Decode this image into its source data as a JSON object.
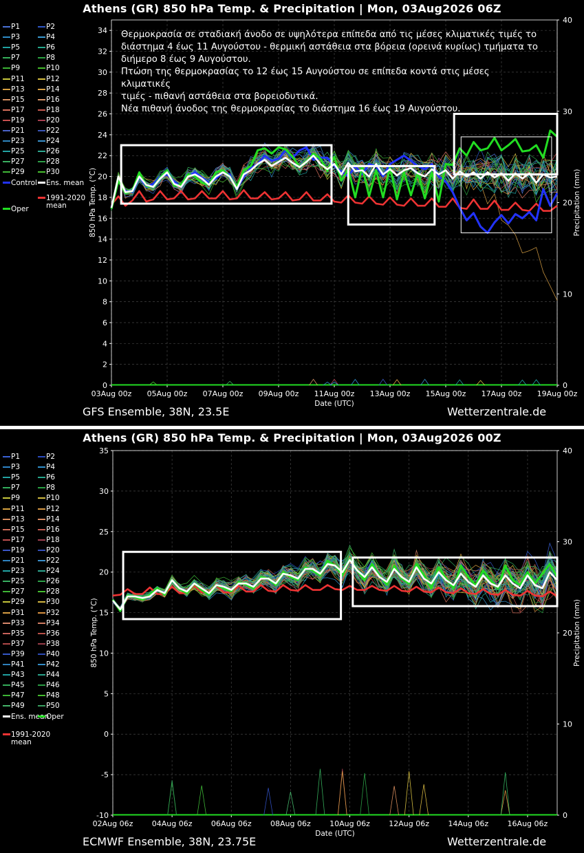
{
  "charts": [
    {
      "id": "gfs",
      "title": "Athens  (GR)  850 hPa Temp. & Precipitation | Mon, 03Aug2026 06Z",
      "footer_left": "GFS Ensemble, 38N, 23.5E",
      "footer_right": "Wetterzentrale.de",
      "annotation": [
        "Θερμοκρασία σε σταδιακή άνοδο σε υψηλότερα επίπεδα από τις μέσες κλιματικές τιμές το",
        "διάστημα 4 έως 11 Αυγούστου - θερμική αστάθεια στα βόρεια (ορεινά κυρίως) τμήματα το",
        "διήμερο 8 έως 9 Αυγούστου.",
        "Πτώση της θερμοκρασίας το 12 έως 15 Αυγούστου σε επίπεδα κοντά στις μέσες κλιματικές",
        "τιμές - πιθανή αστάθεια στα βορειοδυτικά.",
        "Νέα πιθανή άνοδος της θερμοκρασίας το διάστημα 16 έως 19 Αυγούστου."
      ],
      "legend": {
        "members": [
          "P1",
          "P2",
          "P3",
          "P4",
          "P5",
          "P6",
          "P7",
          "P8",
          "P9",
          "P10",
          "P11",
          "P12",
          "P13",
          "P14",
          "P15",
          "P16",
          "P17",
          "P18",
          "P19",
          "P20",
          "P21",
          "P22",
          "P23",
          "P24",
          "P25",
          "P26",
          "P27",
          "P28",
          "P29",
          "P30"
        ],
        "control": "Control",
        "ens_mean": "Ens. mean",
        "climate_line1": "1991-2020",
        "climate_line2": "mean",
        "oper": "Oper"
      },
      "member_colors": [
        "#4a72d8",
        "#2e58c8",
        "#2e8cc8",
        "#3a9ad2",
        "#1fa2a2",
        "#26a88c",
        "#35b05a",
        "#2aa040",
        "#3cb434",
        "#44bc2c",
        "#c8c83c",
        "#d8c040",
        "#d8a040",
        "#d8a044",
        "#d89060",
        "#d89468",
        "#d8705c",
        "#c85a50",
        "#c85050",
        "#a84050",
        "#4a62c8",
        "#3a56b8",
        "#2e86c0",
        "#3a92cc",
        "#22a4a4",
        "#2ea890",
        "#3ab060",
        "#2ea048",
        "#40b838",
        "#48c030"
      ],
      "chart_data": {
        "type": "line",
        "xlabel": "Date (UTC)",
        "ylabel": "850 hPa Temp. (°C)",
        "y2label": "Precipitation (mm)",
        "ylim": [
          0,
          35
        ],
        "y2lim": [
          0,
          40
        ],
        "yticks": [
          0,
          2,
          4,
          6,
          8,
          10,
          12,
          14,
          16,
          18,
          20,
          22,
          24,
          26,
          28,
          30,
          32,
          34
        ],
        "y2ticks": [
          0,
          10,
          20,
          30,
          40
        ],
        "x_start": "03Aug 00z",
        "x_step_hours": 6,
        "x_points": 65,
        "xticks": [
          "03Aug 00z",
          "05Aug 00z",
          "07Aug 00z",
          "09Aug 00z",
          "11Aug 00z",
          "13Aug 00z",
          "15Aug 00z",
          "17Aug 00z",
          "19Aug 00z"
        ],
        "xtick_index": [
          0,
          8,
          16,
          24,
          32,
          40,
          48,
          56,
          64
        ],
        "series": [
          {
            "name": "Ens. mean",
            "color": "#ffffff",
            "values": [
              17.0,
              20.0,
              18.5,
              18.6,
              20.0,
              19.2,
              19.0,
              19.8,
              20.4,
              19.3,
              19.0,
              20.0,
              20.2,
              19.8,
              19.2,
              20.0,
              20.4,
              20.0,
              18.8,
              20.2,
              20.6,
              21.2,
              21.6,
              21.0,
              21.4,
              21.8,
              21.3,
              20.9,
              21.4,
              22.0,
              21.2,
              20.7,
              21.2,
              20.2,
              21.3,
              20.5,
              20.6,
              20.0,
              21.2,
              20.2,
              20.7,
              20.1,
              20.6,
              20.8,
              20.3,
              20.0,
              20.7,
              20.2,
              20.6,
              19.8,
              20.5,
              20.0,
              20.4,
              19.8,
              20.4,
              19.9,
              20.3,
              19.6,
              20.3,
              19.8,
              20.3,
              19.4,
              20.2,
              19.9,
              20.0
            ]
          },
          {
            "name": "Control",
            "color": "#2233ff",
            "values": [
              17.0,
              19.6,
              18.6,
              18.5,
              20.0,
              19.0,
              19.3,
              20.0,
              20.2,
              19.5,
              19.0,
              20.0,
              20.4,
              19.9,
              19.4,
              19.8,
              20.4,
              20.2,
              18.8,
              20.0,
              20.8,
              21.2,
              22.0,
              21.5,
              21.7,
              22.5,
              21.8,
              22.5,
              22.8,
              21.6,
              21.8,
              21.8,
              21.0,
              20.5,
              20.0,
              21.0,
              20.2,
              21.2,
              21.0,
              20.0,
              21.2,
              21.6,
              22.0,
              21.5,
              21.0,
              20.7,
              21.2,
              20.0,
              19.5,
              18.5,
              17.0,
              15.8,
              16.5,
              15.2,
              14.6,
              15.6,
              16.3,
              15.5,
              16.4,
              16.0,
              16.6,
              15.8,
              18.8,
              17.2,
              18.4
            ]
          },
          {
            "name": "Oper",
            "color": "#22dd22",
            "values": [
              16.9,
              19.6,
              18.4,
              18.6,
              20.4,
              19.1,
              19.0,
              19.9,
              20.6,
              19.1,
              19.2,
              20.2,
              20.0,
              19.4,
              19.2,
              20.4,
              20.6,
              20.0,
              19.0,
              20.6,
              21.0,
              22.5,
              22.7,
              22.2,
              22.8,
              22.6,
              21.9,
              20.9,
              21.4,
              22.2,
              21.7,
              20.5,
              21.9,
              19.6,
              20.7,
              18.0,
              20.9,
              18.1,
              20.6,
              18.0,
              20.9,
              17.8,
              20.4,
              18.2,
              20.4,
              17.9,
              20.4,
              17.6,
              21.2,
              21.1,
              22.7,
              22.0,
              23.3,
              22.5,
              22.7,
              23.7,
              22.5,
              23.0,
              23.6,
              22.4,
              22.5,
              23.0,
              21.8,
              24.4,
              23.8
            ]
          },
          {
            "name": "1991-2020 mean",
            "color": "#ee3333",
            "values": [
              17.3,
              18.1,
              17.2,
              17.7,
              18.6,
              17.6,
              17.8,
              18.6,
              17.8,
              17.9,
              18.6,
              17.8,
              17.9,
              18.6,
              17.9,
              17.9,
              18.6,
              17.8,
              17.9,
              18.7,
              17.9,
              17.9,
              18.5,
              17.8,
              17.9,
              18.5,
              17.7,
              17.8,
              18.5,
              17.7,
              17.7,
              18.3,
              17.6,
              17.5,
              18.2,
              17.5,
              17.4,
              18.1,
              17.4,
              17.3,
              18.0,
              17.3,
              17.2,
              17.9,
              17.2,
              17.2,
              17.9,
              17.1,
              17.1,
              17.9,
              17.0,
              16.9,
              17.8,
              16.9,
              16.9,
              17.7,
              16.8,
              16.8,
              17.5,
              16.8,
              16.7,
              17.4,
              16.7,
              16.7,
              17.2
            ]
          }
        ],
        "members_spread": {
          "base": "Ens. mean",
          "spread_start": 0.6,
          "spread_end": 3.2
        },
        "precip": {
          "name": "Precipitation",
          "color": "#22dd22",
          "values": [
            0,
            0,
            0,
            0,
            0,
            0,
            0,
            0,
            0,
            0,
            0,
            0,
            0,
            0,
            0,
            0,
            0,
            0,
            0,
            0,
            0,
            0,
            0,
            0,
            0,
            0,
            0,
            0,
            0,
            0,
            0,
            0,
            0,
            0,
            0,
            0,
            0,
            0,
            0,
            0,
            0,
            0,
            0,
            0,
            0,
            0,
            0,
            0,
            0,
            0,
            0,
            0,
            0,
            0,
            0,
            0,
            0,
            0,
            0,
            0,
            0,
            0,
            0,
            0,
            0
          ]
        },
        "highlight_boxes": [
          {
            "x0_index": 1.4,
            "x1_index": 31.6,
            "y0": 17.4,
            "y1": 23.0
          },
          {
            "x0_index": 34.0,
            "x1_index": 46.4,
            "y0": 15.4,
            "y1": 21.0
          },
          {
            "x0_index": 49.2,
            "x1_index": 64.0,
            "y0": 20.2,
            "y1": 26.0
          },
          {
            "x0_index": 50.2,
            "x1_index": 63.2,
            "y0": 14.6,
            "y1": 23.8
          }
        ]
      }
    },
    {
      "id": "ecmwf",
      "title": "Athens  (GR)  850 hPa Temp. & Precipitation | Mon, 03Aug2026 00Z",
      "footer_left": "ECMWF Ensemble, 38N, 23.75E",
      "footer_right": "Wetterzentrale.de",
      "annotation": [],
      "legend": {
        "members": [
          "P1",
          "P2",
          "P3",
          "P4",
          "P5",
          "P6",
          "P7",
          "P8",
          "P9",
          "P10",
          "P11",
          "P12",
          "P13",
          "P14",
          "P15",
          "P16",
          "P17",
          "P18",
          "P19",
          "P20",
          "P21",
          "P22",
          "P23",
          "P24",
          "P25",
          "P26",
          "P27",
          "P28",
          "P29",
          "P30",
          "P31",
          "P32",
          "P33",
          "P34",
          "P35",
          "P36",
          "P37",
          "P38",
          "P39",
          "P40",
          "P41",
          "P42",
          "P43",
          "P44",
          "P45",
          "P46",
          "P47",
          "P48",
          "P49",
          "P50"
        ],
        "control": "",
        "ens_mean": "Ens. mean",
        "climate_line1": "1991-2020",
        "climate_line2": "mean",
        "oper": "Oper"
      },
      "member_colors": [
        "#3a62d8",
        "#2a4cc0",
        "#2e84c8",
        "#3090cc",
        "#22a2a2",
        "#26a68c",
        "#32ae5c",
        "#28a042",
        "#c8c83c",
        "#d2bc40",
        "#d8a440",
        "#d89a44",
        "#d88c5c",
        "#d88a62",
        "#d06c58",
        "#c05a50",
        "#c05050",
        "#a04050",
        "#3a56c8",
        "#3450b8",
        "#2e82c0",
        "#3a90cc",
        "#22a4a4",
        "#2ea890",
        "#38b060",
        "#2ea048",
        "#3eb636",
        "#46be30",
        "#c4c43a",
        "#d4b640",
        "#d89e44",
        "#d89040",
        "#d8866a",
        "#d07c62",
        "#c8625a",
        "#b85048",
        "#b04848",
        "#983c48",
        "#3458c8",
        "#2e4cb8",
        "#2e80bc",
        "#348ec8",
        "#20a0a0",
        "#2aa48c",
        "#34ac5a",
        "#2a9c44",
        "#3cb436",
        "#44bc2e",
        "#44b46a",
        "#38a060"
      ],
      "chart_data": {
        "type": "line",
        "xlabel": "Date (UTC)",
        "ylabel": "850 hPa Temp. (°C)",
        "y2label": "Precipitation (mm)",
        "ylim": [
          -10,
          35
        ],
        "y2lim": [
          0,
          40
        ],
        "yticks": [
          -10,
          -5,
          0,
          5,
          10,
          15,
          20,
          25,
          30,
          35
        ],
        "y2ticks": [
          0,
          10,
          20,
          30,
          40
        ],
        "x_start": "02Aug 06z",
        "x_step_hours": 6,
        "x_points": 61,
        "xticks": [
          "02Aug 06z",
          "04Aug 06z",
          "06Aug 06z",
          "08Aug 06z",
          "10Aug 06z",
          "12Aug 06z",
          "14Aug 06z",
          "16Aug 06z"
        ],
        "xtick_index": [
          0,
          8,
          16,
          24,
          32,
          40,
          48,
          56
        ],
        "series": [
          {
            "name": "Ens. mean",
            "color": "#ffffff",
            "values": [
              16.5,
              15.4,
              17.0,
              17.0,
              16.8,
              17.0,
              17.8,
              17.4,
              19.0,
              18.0,
              17.6,
              18.6,
              18.0,
              17.4,
              18.4,
              18.2,
              17.8,
              18.6,
              18.6,
              18.2,
              19.2,
              19.2,
              18.6,
              19.8,
              19.6,
              19.2,
              20.4,
              20.4,
              19.8,
              21.0,
              20.8,
              20.0,
              21.5,
              20.2,
              19.4,
              20.6,
              19.4,
              18.8,
              20.4,
              19.4,
              18.8,
              20.6,
              19.2,
              18.6,
              20.0,
              19.0,
              18.4,
              19.8,
              18.8,
              18.2,
              19.6,
              18.6,
              18.2,
              19.6,
              18.6,
              18.0,
              19.6,
              18.4,
              18.0,
              20.0,
              19.0
            ]
          },
          {
            "name": "Oper",
            "color": "#22dd22",
            "values": [
              16.6,
              15.2,
              17.1,
              16.9,
              16.6,
              17.2,
              18.0,
              17.2,
              19.0,
              17.9,
              17.4,
              18.6,
              17.8,
              17.2,
              18.4,
              18.0,
              17.6,
              18.8,
              18.4,
              18.0,
              19.4,
              19.2,
              18.4,
              20.0,
              19.4,
              19.0,
              20.6,
              20.2,
              19.6,
              21.4,
              20.8,
              19.6,
              21.6,
              20.2,
              19.0,
              21.0,
              19.6,
              18.4,
              20.8,
              19.2,
              18.6,
              21.0,
              19.6,
              18.0,
              20.6,
              19.2,
              18.0,
              20.8,
              19.4,
              18.4,
              20.2,
              19.0,
              18.0,
              20.8,
              19.0,
              18.4,
              20.0,
              18.6,
              19.8,
              21.0,
              19.4
            ]
          },
          {
            "name": "1991-2020 mean",
            "color": "#ee3333",
            "values": [
              17.1,
              17.2,
              17.9,
              17.3,
              17.3,
              18.1,
              17.3,
              17.3,
              18.2,
              17.4,
              17.4,
              18.3,
              17.5,
              17.5,
              18.3,
              17.5,
              17.5,
              18.3,
              17.6,
              17.6,
              18.4,
              17.7,
              17.6,
              18.4,
              17.8,
              17.7,
              18.4,
              17.8,
              17.8,
              18.4,
              17.9,
              17.8,
              18.3,
              17.8,
              17.8,
              18.3,
              17.8,
              17.7,
              18.3,
              17.7,
              17.6,
              18.2,
              17.6,
              17.5,
              18.1,
              17.5,
              17.4,
              18.0,
              17.4,
              17.3,
              17.9,
              17.3,
              17.2,
              17.8,
              17.2,
              17.1,
              17.7,
              17.1,
              17.0,
              17.6,
              17.0
            ]
          }
        ],
        "members_spread": {
          "base": "Ens. mean",
          "spread_start": 0.5,
          "spread_end": 3.6
        },
        "precip": {
          "name": "Precipitation",
          "color": "#22dd22",
          "values": [
            0,
            0,
            0,
            0,
            0,
            0,
            0,
            0,
            0,
            0,
            0,
            0,
            0,
            0,
            0,
            0,
            0,
            0,
            0,
            0,
            0,
            0,
            0,
            0,
            0,
            0,
            0,
            0,
            0,
            0,
            0,
            0,
            0,
            0,
            0,
            0,
            0,
            0,
            0,
            0,
            0,
            0,
            0,
            0,
            0,
            0,
            0,
            0,
            0,
            0,
            0,
            0,
            0,
            0,
            0,
            0,
            0,
            0,
            0,
            0,
            0
          ]
        },
        "highlight_boxes": [
          {
            "x0_index": 1.4,
            "x1_index": 30.8,
            "y0": 14.2,
            "y1": 22.5
          },
          {
            "x0_index": 32.4,
            "x1_index": 60.0,
            "y0": 15.8,
            "y1": 21.8
          }
        ]
      }
    }
  ]
}
